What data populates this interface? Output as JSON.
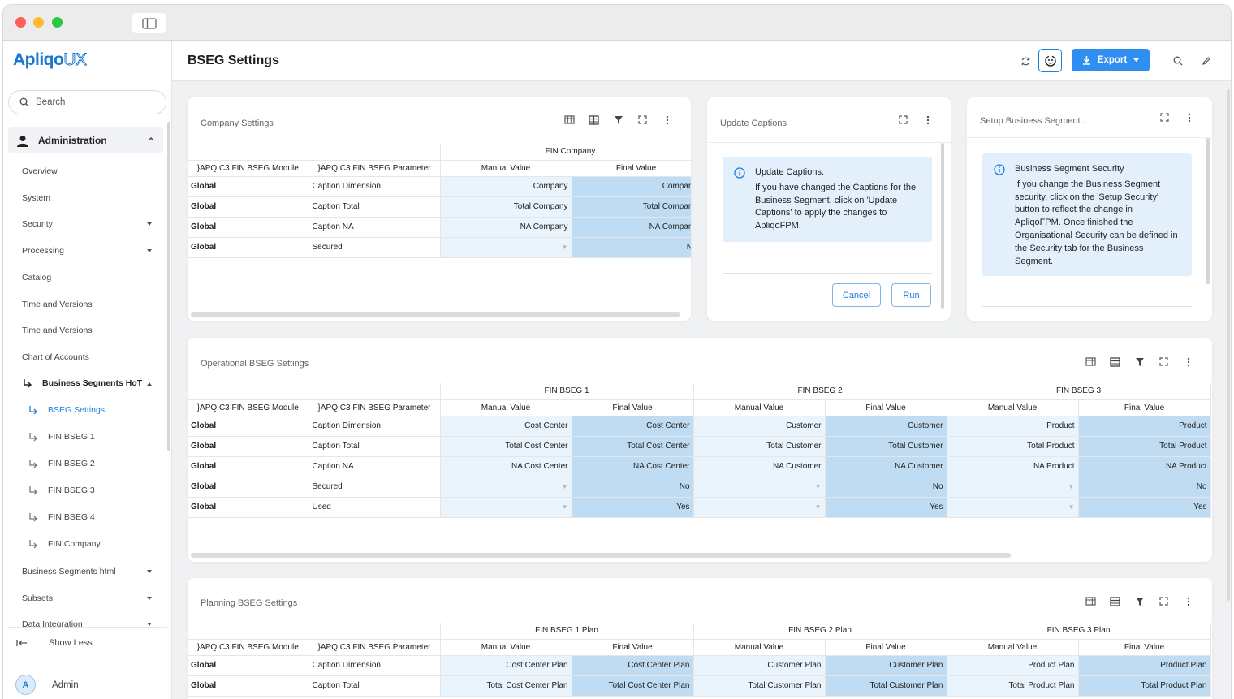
{
  "app": {
    "logo_main": "Apliqo",
    "logo_ux": "UX"
  },
  "nav": {
    "search_placeholder": "Search",
    "admin_label": "Administration",
    "items": [
      "Overview",
      "System",
      "Security",
      "Processing",
      "Catalog",
      "Time and Versions",
      "Time and Versions",
      "Chart of Accounts"
    ],
    "bsh_label": "Business Segments HoT",
    "sub_items": [
      "BSEG Settings",
      "FIN BSEG 1",
      "FIN BSEG 2",
      "FIN BSEG 3",
      "FIN BSEG 4",
      "FIN Company"
    ],
    "after_items": [
      "Business Segments html",
      "Subsets",
      "Data Integration"
    ],
    "show_less": "Show Less",
    "user_initial": "A",
    "user_name": "Admin"
  },
  "header": {
    "title": "BSEG Settings",
    "export_label": "Export"
  },
  "company": {
    "title": "Company Settings",
    "group": "FIN Company",
    "col_module": "}APQ C3 FIN BSEG Module",
    "col_param": "}APQ C3 FIN BSEG Parameter",
    "col_manual": "Manual Value",
    "col_final": "Final Value",
    "rows": [
      {
        "module": "Global",
        "param": "Caption Dimension",
        "manual": "Company",
        "final": "Company"
      },
      {
        "module": "Global",
        "param": "Caption Total",
        "manual": "Total Company",
        "final": "Total Company"
      },
      {
        "module": "Global",
        "param": "Caption NA",
        "manual": "NA Company",
        "final": "NA Company"
      },
      {
        "module": "Global",
        "param": "Secured",
        "manual": "▼",
        "final": "No"
      }
    ]
  },
  "captions": {
    "title": "Update Captions",
    "info_title": "Update Captions.",
    "info_text": "If you have changed the Captions for the Business Segment, click on 'Update Captions' to apply the changes to ApliqoFPM.",
    "cancel": "Cancel",
    "run": "Run"
  },
  "security": {
    "title": "Setup Business Segment ...",
    "info_title": "Business Segment Security",
    "info_text": "If you change the Business Segment security, click on the 'Setup Security' button to reflect the change in ApliqoFPM. Once finished the Organisational Security can be defined in the Security tab for the Business Segment."
  },
  "operational": {
    "title": "Operational BSEG Settings",
    "groups": [
      "FIN BSEG 1",
      "FIN BSEG 2",
      "FIN BSEG 3"
    ],
    "col_module": "}APQ C3 FIN BSEG Module",
    "col_param": "}APQ C3 FIN BSEG Parameter",
    "col_manual": "Manual Value",
    "col_final": "Final Value",
    "rows": [
      {
        "module": "Global",
        "param": "Caption Dimension",
        "v": [
          "Cost Center",
          "Cost Center",
          "Customer",
          "Customer",
          "Product",
          "Product"
        ]
      },
      {
        "module": "Global",
        "param": "Caption Total",
        "v": [
          "Total Cost Center",
          "Total Cost Center",
          "Total Customer",
          "Total Customer",
          "Total Product",
          "Total Product"
        ]
      },
      {
        "module": "Global",
        "param": "Caption NA",
        "v": [
          "NA Cost Center",
          "NA Cost Center",
          "NA Customer",
          "NA Customer",
          "NA Product",
          "NA Product"
        ]
      },
      {
        "module": "Global",
        "param": "Secured",
        "v": [
          "▼",
          "No",
          "▼",
          "No",
          "▼",
          "No"
        ]
      },
      {
        "module": "Global",
        "param": "Used",
        "v": [
          "▼",
          "Yes",
          "▼",
          "Yes",
          "▼",
          "Yes"
        ]
      }
    ]
  },
  "planning": {
    "title": "Planning BSEG Settings",
    "groups": [
      "FIN BSEG 1 Plan",
      "FIN BSEG 2 Plan",
      "FIN BSEG 3 Plan"
    ],
    "col_module": "}APQ C3 FIN BSEG Module",
    "col_param": "}APQ C3 FIN BSEG Parameter",
    "col_manual": "Manual Value",
    "col_final": "Final Value",
    "rows": [
      {
        "module": "Global",
        "param": "Caption Dimension",
        "v": [
          "Cost Center Plan",
          "Cost Center Plan",
          "Customer Plan",
          "Customer Plan",
          "Product Plan",
          "Product Plan"
        ]
      },
      {
        "module": "Global",
        "param": "Caption Total",
        "v": [
          "Total Cost Center Plan",
          "Total Cost Center Plan",
          "Total Customer Plan",
          "Total Customer Plan",
          "Total Product Plan",
          "Total Product Plan"
        ]
      }
    ]
  },
  "colors": {
    "accent": "#1b7fe0",
    "export_bg": "#2f8ff0",
    "manual_bg": "#eaf4fc",
    "final_bg": "#bfdcf2",
    "info_bg": "#e3f0fb"
  }
}
